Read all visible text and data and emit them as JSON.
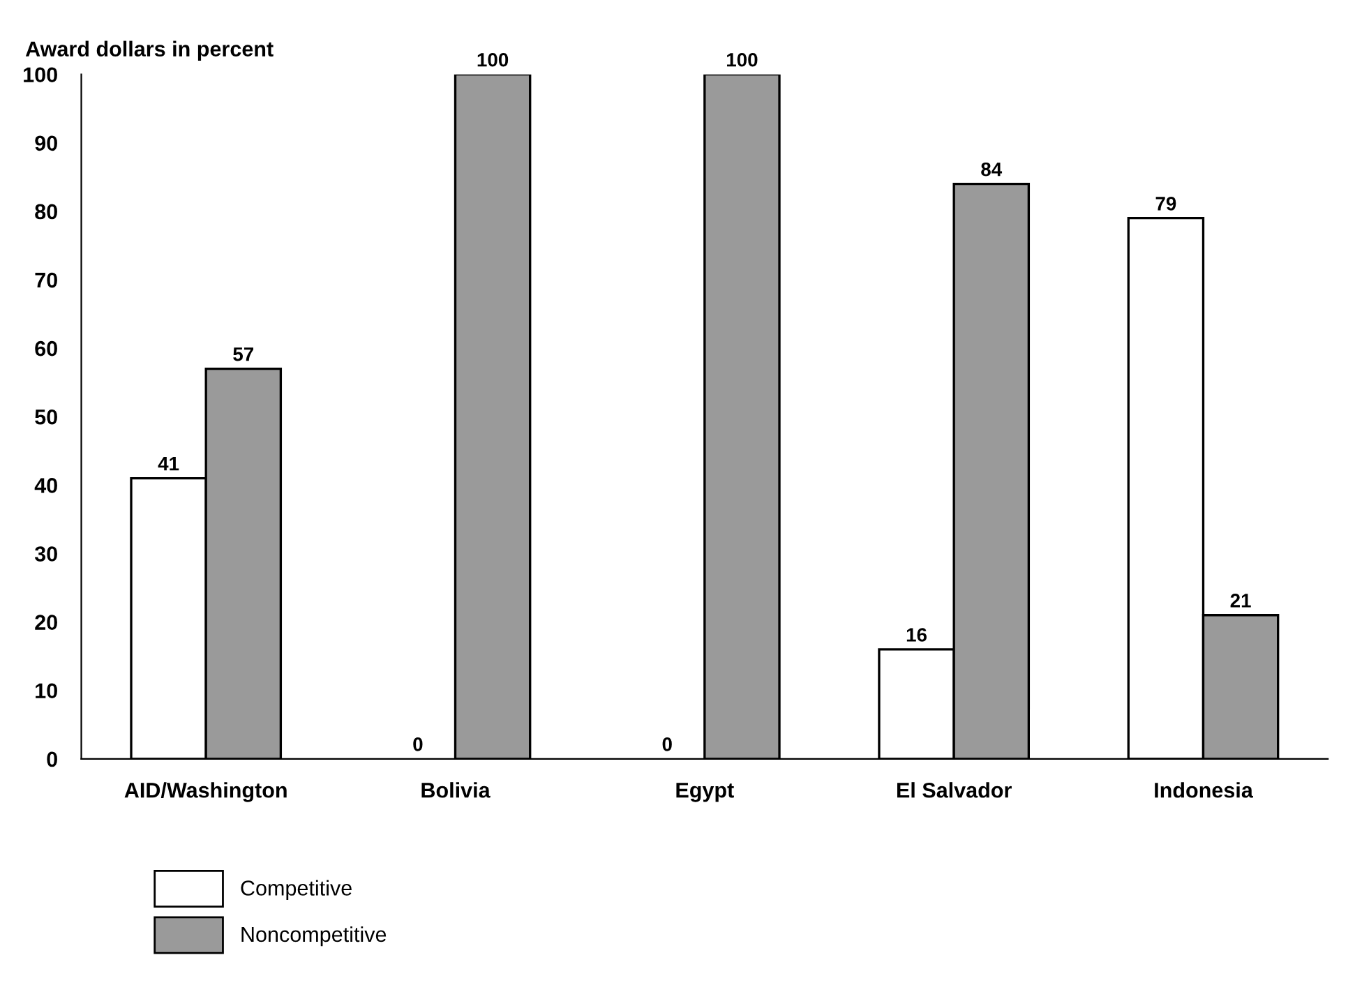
{
  "chart_data": {
    "type": "bar",
    "ylabel": "Award dollars in percent",
    "categories": [
      "AID/Washington",
      "Bolivia",
      "Egypt",
      "El Salvador",
      "Indonesia"
    ],
    "series": [
      {
        "name": "Competitive",
        "color": "#ffffff",
        "values": [
          41,
          0,
          0,
          16,
          79
        ]
      },
      {
        "name": "Noncompetitive",
        "color": "#9a9a9a",
        "values": [
          57,
          100,
          100,
          84,
          21
        ]
      }
    ],
    "ylim": [
      0,
      100
    ],
    "yticks": [
      0,
      10,
      20,
      30,
      40,
      50,
      60,
      70,
      80,
      90,
      100
    ],
    "data_labels": true,
    "grid": false,
    "legend": "bottom left"
  }
}
